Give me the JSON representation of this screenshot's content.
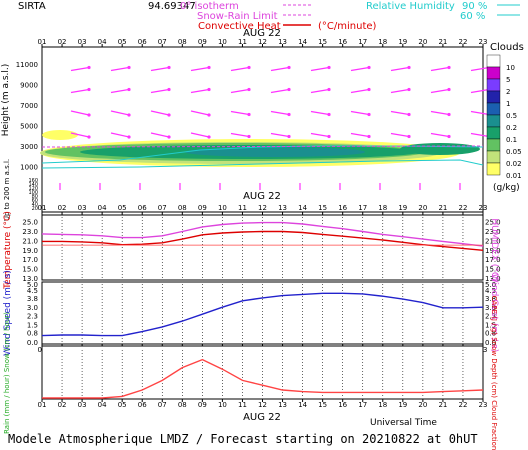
{
  "header": {
    "station": "SIRTA",
    "coord": "94.69347",
    "legend_isotherm": "0° isotherm",
    "legend_snowrain": "Snow-Rain Limit",
    "legend_convective": "Convective Heat",
    "legend_convective_unit": "(°C/minute)",
    "legend_rh": "Relative Humidity",
    "rh_90": "90 %",
    "rh_60": "60 %"
  },
  "hours": [
    "01",
    "02",
    "03",
    "04",
    "05",
    "06",
    "07",
    "08",
    "09",
    "10",
    "11",
    "12",
    "13",
    "14",
    "15",
    "16",
    "17",
    "18",
    "19",
    "20",
    "21",
    "22",
    "23"
  ],
  "date_label": "AUG 22",
  "clouds": {
    "title": "Clouds",
    "unit": "(g/kg)",
    "scale": [
      "10",
      "5",
      "2",
      "1",
      "0.5",
      "0.2",
      "0.1",
      "0.05",
      "0.02",
      "0.01"
    ],
    "colors": [
      "#ffffff",
      "#cc00cc",
      "#7a3cff",
      "#2222aa",
      "#1b5fb0",
      "#1a8f8f",
      "#18a06a",
      "#62c262",
      "#c2e27a",
      "#ffff66"
    ]
  },
  "height_panel": {
    "ylabel": "Height (m a.s.l.)",
    "ylabel2": "Up to 200 m a.s.l.",
    "ticks_upper": [
      "11000",
      "9000",
      "7000",
      "5000",
      "3000",
      "1000"
    ],
    "ticks_lower": [
      "160",
      "140",
      "120",
      "100",
      "80",
      "60",
      "40",
      "20"
    ],
    "marks": [
      "60",
      "60",
      "90",
      "60",
      "60"
    ]
  },
  "chart_data": [
    {
      "type": "line",
      "title": "",
      "xlabel": "",
      "ylabel": "Temperature (°C)",
      "ylabel_right": "HUMIDEX (°C)",
      "yticks": [
        "25.0",
        "23.0",
        "21.0",
        "19.0",
        "17.0",
        "15.0",
        "13.0"
      ],
      "ylim": [
        13,
        26
      ],
      "x": [
        1,
        2,
        3,
        4,
        5,
        6,
        7,
        8,
        9,
        10,
        11,
        12,
        13,
        14,
        15,
        16,
        17,
        18,
        19,
        20,
        21,
        22,
        23
      ],
      "series": [
        {
          "name": "",
          "color": "#dd0000",
          "values": [
            20.8,
            20.8,
            20.7,
            20.5,
            20.1,
            20.2,
            20.5,
            21.3,
            22.2,
            22.6,
            22.8,
            22.9,
            22.9,
            22.7,
            22.3,
            21.9,
            21.5,
            21.1,
            20.6,
            20.1,
            19.7,
            19.3,
            18.9
          ]
        },
        {
          "name": "",
          "color": "#dd44dd",
          "values": [
            22.4,
            22.3,
            22.2,
            22.0,
            21.6,
            21.6,
            22.0,
            22.9,
            23.9,
            24.4,
            24.7,
            24.8,
            24.8,
            24.5,
            24.0,
            23.5,
            22.9,
            22.3,
            21.8,
            21.3,
            20.8,
            20.3,
            19.8
          ]
        }
      ]
    },
    {
      "type": "line",
      "title": "",
      "ylabel": "Wind Speed (m / s)",
      "ylabel_right": "Wind Gust (m / s)",
      "yticks": [
        "5.0",
        "4.5",
        "3.8",
        "3.0",
        "2.3",
        "1.5",
        "0.8",
        "0.0"
      ],
      "ylim": [
        0,
        5.0
      ],
      "x": [
        1,
        2,
        3,
        4,
        5,
        6,
        7,
        8,
        9,
        10,
        11,
        12,
        13,
        14,
        15,
        16,
        17,
        18,
        19,
        20,
        21,
        22,
        23
      ],
      "series": [
        {
          "name": "",
          "color": "#2222cc",
          "values": [
            0.55,
            0.6,
            0.6,
            0.55,
            0.55,
            0.9,
            1.3,
            1.8,
            2.4,
            3.0,
            3.55,
            3.8,
            4.0,
            4.1,
            4.2,
            4.2,
            4.15,
            3.95,
            3.7,
            3.4,
            2.95,
            2.95,
            3.0
          ]
        }
      ]
    },
    {
      "type": "line",
      "title": "",
      "ylabel": "Rain (mm / hour) Snow (cm / hour)",
      "ylabel_right": "CAPE (J / g) Snow Depth (cm) Cloud Fraction",
      "x": [
        1,
        2,
        3,
        4,
        5,
        6,
        7,
        8,
        9,
        10,
        11,
        12,
        13,
        14,
        15,
        16,
        17,
        18,
        19,
        20,
        21,
        22,
        23
      ],
      "series": [
        {
          "name": "",
          "color": "#ff4444",
          "values": [
            0.0,
            0.0,
            0.0,
            0.0,
            0.02,
            0.1,
            0.22,
            0.38,
            0.48,
            0.36,
            0.22,
            0.16,
            0.1,
            0.08,
            0.07,
            0.07,
            0.07,
            0.07,
            0.07,
            0.07,
            0.08,
            0.09,
            0.1
          ]
        }
      ]
    }
  ],
  "footer": {
    "universal_time": "Universal Time",
    "date_label": "AUG 22",
    "model": "Modele Atmospherique LMDZ / Forecast starting on 20210822 at 0hUT"
  }
}
